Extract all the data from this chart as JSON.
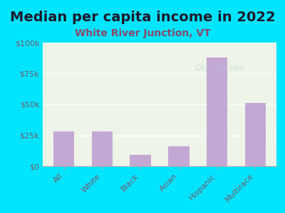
{
  "title": "Median per capita income in 2022",
  "subtitle": "White River Junction, VT",
  "categories": [
    "All",
    "White",
    "Black",
    "Asian",
    "Hispanic",
    "Multirace"
  ],
  "values": [
    28000,
    28000,
    9000,
    16000,
    88000,
    51000
  ],
  "bar_color": "#c4a8d4",
  "title_color": "#1a1a2e",
  "subtitle_color": "#8b4a6b",
  "background_outer": "#00e5ff",
  "background_inner": "#eef5e8",
  "axis_label_color": "#7a5c6e",
  "ylim": [
    0,
    100000
  ],
  "yticks": [
    0,
    25000,
    50000,
    75000,
    100000
  ],
  "ytick_labels": [
    "$0",
    "$25k",
    "$50k",
    "$75k",
    "$100k"
  ],
  "watermark": "City-Data.com",
  "title_fontsize": 14,
  "subtitle_fontsize": 10
}
